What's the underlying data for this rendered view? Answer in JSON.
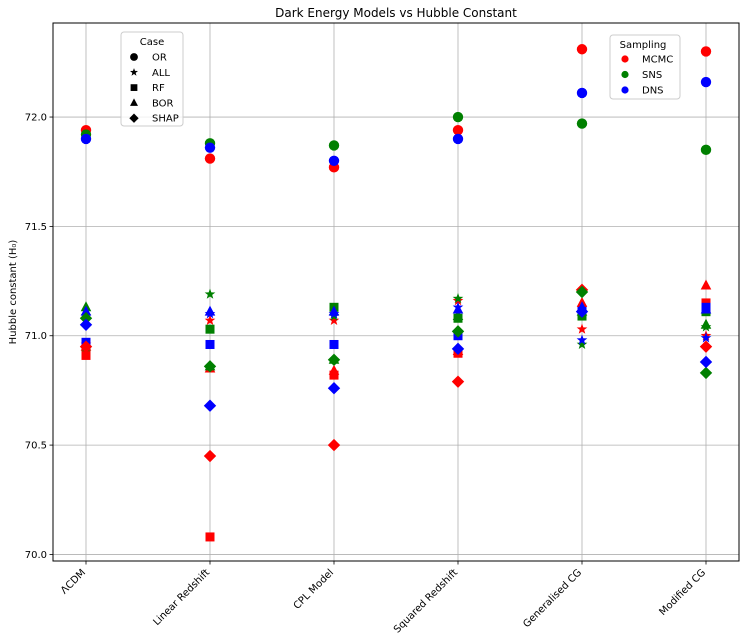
{
  "chart_data": {
    "type": "scatter",
    "title": "Dark Energy Models vs Hubble Constant",
    "xlabel": "",
    "ylabel": "Hubble constant (H₀)",
    "categories": [
      "ΛCDM",
      "Linear Redshift",
      "CPL Model",
      "Squared Redshift",
      "Generalised CG",
      "Modified CG"
    ],
    "yticks": [
      "70.0",
      "70.5",
      "71.0",
      "71.5",
      "72.0"
    ],
    "ylim": [
      69.97,
      72.43
    ],
    "grid": true,
    "legend_case": {
      "title": "Case",
      "placement": "upper-left",
      "entries": [
        {
          "label": "OR",
          "marker": "circle"
        },
        {
          "label": "ALL",
          "marker": "star"
        },
        {
          "label": "RF",
          "marker": "square"
        },
        {
          "label": "BOR",
          "marker": "triangle"
        },
        {
          "label": "SHAP",
          "marker": "diamond"
        }
      ]
    },
    "legend_sampling": {
      "title": "Sampling",
      "placement": "upper-right",
      "entries": [
        {
          "label": "MCMC",
          "color": "#ff0000"
        },
        {
          "label": "SNS",
          "color": "#008000"
        },
        {
          "label": "DNS",
          "color": "#0000ff"
        }
      ]
    },
    "series": [
      {
        "case": "OR",
        "sampling": "MCMC",
        "values": [
          71.94,
          71.81,
          71.77,
          71.94,
          72.31,
          72.3
        ]
      },
      {
        "case": "OR",
        "sampling": "SNS",
        "values": [
          71.92,
          71.88,
          71.87,
          72.0,
          71.97,
          71.85
        ]
      },
      {
        "case": "OR",
        "sampling": "DNS",
        "values": [
          71.9,
          71.86,
          71.8,
          71.9,
          72.11,
          72.16
        ]
      },
      {
        "case": "ALL",
        "sampling": "MCMC",
        "values": [
          70.96,
          71.07,
          71.07,
          71.16,
          71.03,
          71.0
        ]
      },
      {
        "case": "ALL",
        "sampling": "SNS",
        "values": [
          71.09,
          71.19,
          71.09,
          71.17,
          70.96,
          71.04
        ]
      },
      {
        "case": "ALL",
        "sampling": "DNS",
        "values": [
          71.07,
          71.1,
          71.1,
          71.13,
          70.98,
          70.99
        ]
      },
      {
        "case": "RF",
        "sampling": "MCMC",
        "values": [
          70.91,
          70.08,
          70.82,
          70.92,
          71.11,
          71.15
        ]
      },
      {
        "case": "RF",
        "sampling": "SNS",
        "values": [
          70.95,
          71.03,
          71.13,
          71.08,
          71.09,
          71.11
        ]
      },
      {
        "case": "RF",
        "sampling": "DNS",
        "values": [
          70.97,
          70.96,
          70.96,
          71.0,
          71.12,
          71.13
        ]
      },
      {
        "case": "BOR",
        "sampling": "MCMC",
        "values": [
          70.95,
          70.85,
          70.84,
          70.93,
          71.15,
          71.23
        ]
      },
      {
        "case": "BOR",
        "sampling": "SNS",
        "values": [
          71.13,
          70.86,
          70.89,
          71.09,
          71.11,
          71.05
        ]
      },
      {
        "case": "BOR",
        "sampling": "DNS",
        "values": [
          71.11,
          71.11,
          71.11,
          71.12,
          71.13,
          71.12
        ]
      },
      {
        "case": "SHAP",
        "sampling": "MCMC",
        "values": [
          70.95,
          70.45,
          70.5,
          70.79,
          71.21,
          70.95
        ]
      },
      {
        "case": "SHAP",
        "sampling": "SNS",
        "values": [
          71.08,
          70.86,
          70.89,
          71.02,
          71.2,
          70.83
        ]
      },
      {
        "case": "SHAP",
        "sampling": "DNS",
        "values": [
          71.05,
          70.68,
          70.76,
          70.94,
          71.11,
          70.88
        ]
      }
    ]
  }
}
